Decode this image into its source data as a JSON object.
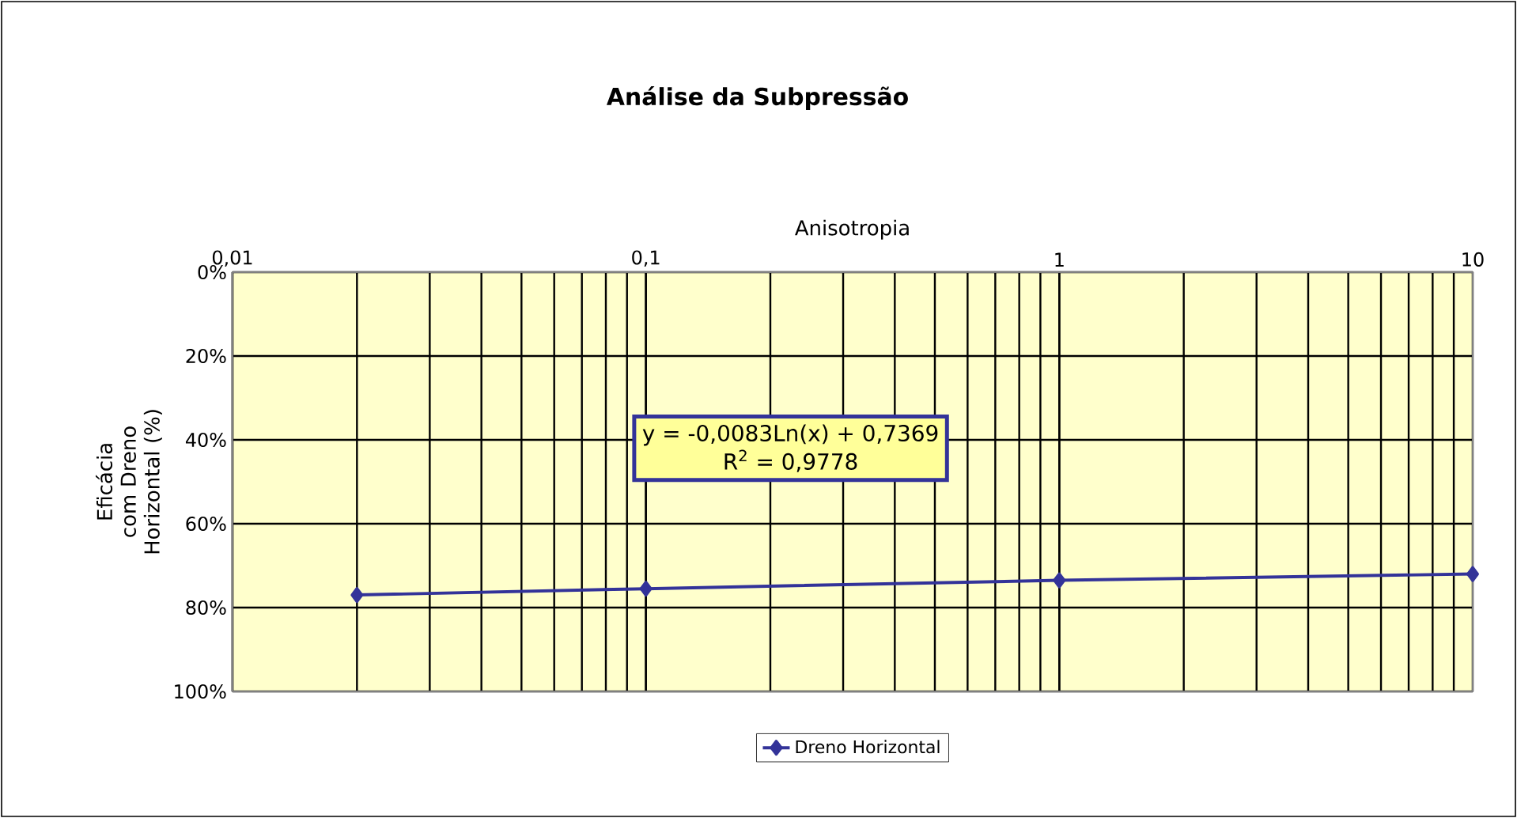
{
  "chart_data": {
    "type": "line",
    "title": "Análise da Subpressão",
    "xlabel": "Anisotropia",
    "ylabel": "Eficácia com Dreno Horizontal (%)",
    "x": [
      0.02,
      0.1,
      1,
      10
    ],
    "series": [
      {
        "name": "Dreno Horizontal",
        "color": "#333399",
        "values": [
          77,
          75.5,
          73.5,
          72
        ]
      }
    ],
    "log": "x",
    "xlim": [
      0.01,
      10
    ],
    "xticks": [
      {
        "value": 0.01,
        "label": "0,01"
      },
      {
        "value": 0.1,
        "label": "0,1"
      },
      {
        "value": 1,
        "label": "1"
      },
      {
        "value": 10,
        "label": "10"
      }
    ],
    "ylim": [
      100,
      0
    ],
    "yticks": [
      {
        "value": 0,
        "label": "0%"
      },
      {
        "value": 20,
        "label": "20%"
      },
      {
        "value": 40,
        "label": "40%"
      },
      {
        "value": 60,
        "label": "60%"
      },
      {
        "value": 80,
        "label": "80%"
      },
      {
        "value": 100,
        "label": "100%"
      }
    ],
    "grid": true,
    "legend": "bottom",
    "marker": "diamond",
    "line_style": "solid",
    "annotations": [
      "y = -0,0083Ln(x) + 0,7369",
      "R$^{2}$ = 0,9778"
    ]
  }
}
